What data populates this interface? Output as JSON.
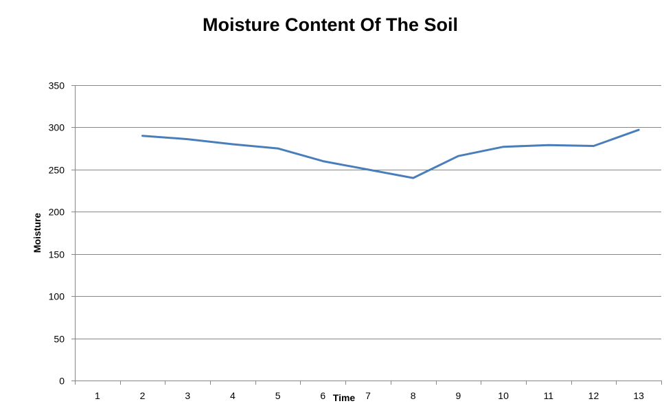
{
  "chart_data": {
    "type": "line",
    "title": "Moisture Content Of The Soil",
    "xlabel": "Time",
    "ylabel": "Moisture",
    "categories": [
      "1",
      "2",
      "3",
      "4",
      "5",
      "6",
      "7",
      "8",
      "9",
      "10",
      "11",
      "12",
      "13"
    ],
    "series": [
      {
        "values": [
          null,
          290,
          286,
          280,
          275,
          260,
          250,
          240,
          266,
          277,
          279,
          278,
          297
        ],
        "color": "#4a7ebb"
      }
    ],
    "ylim": [
      0,
      350
    ],
    "yticks": [
      0,
      50,
      100,
      150,
      200,
      250,
      300,
      350
    ],
    "grid": true,
    "legend": "none"
  }
}
